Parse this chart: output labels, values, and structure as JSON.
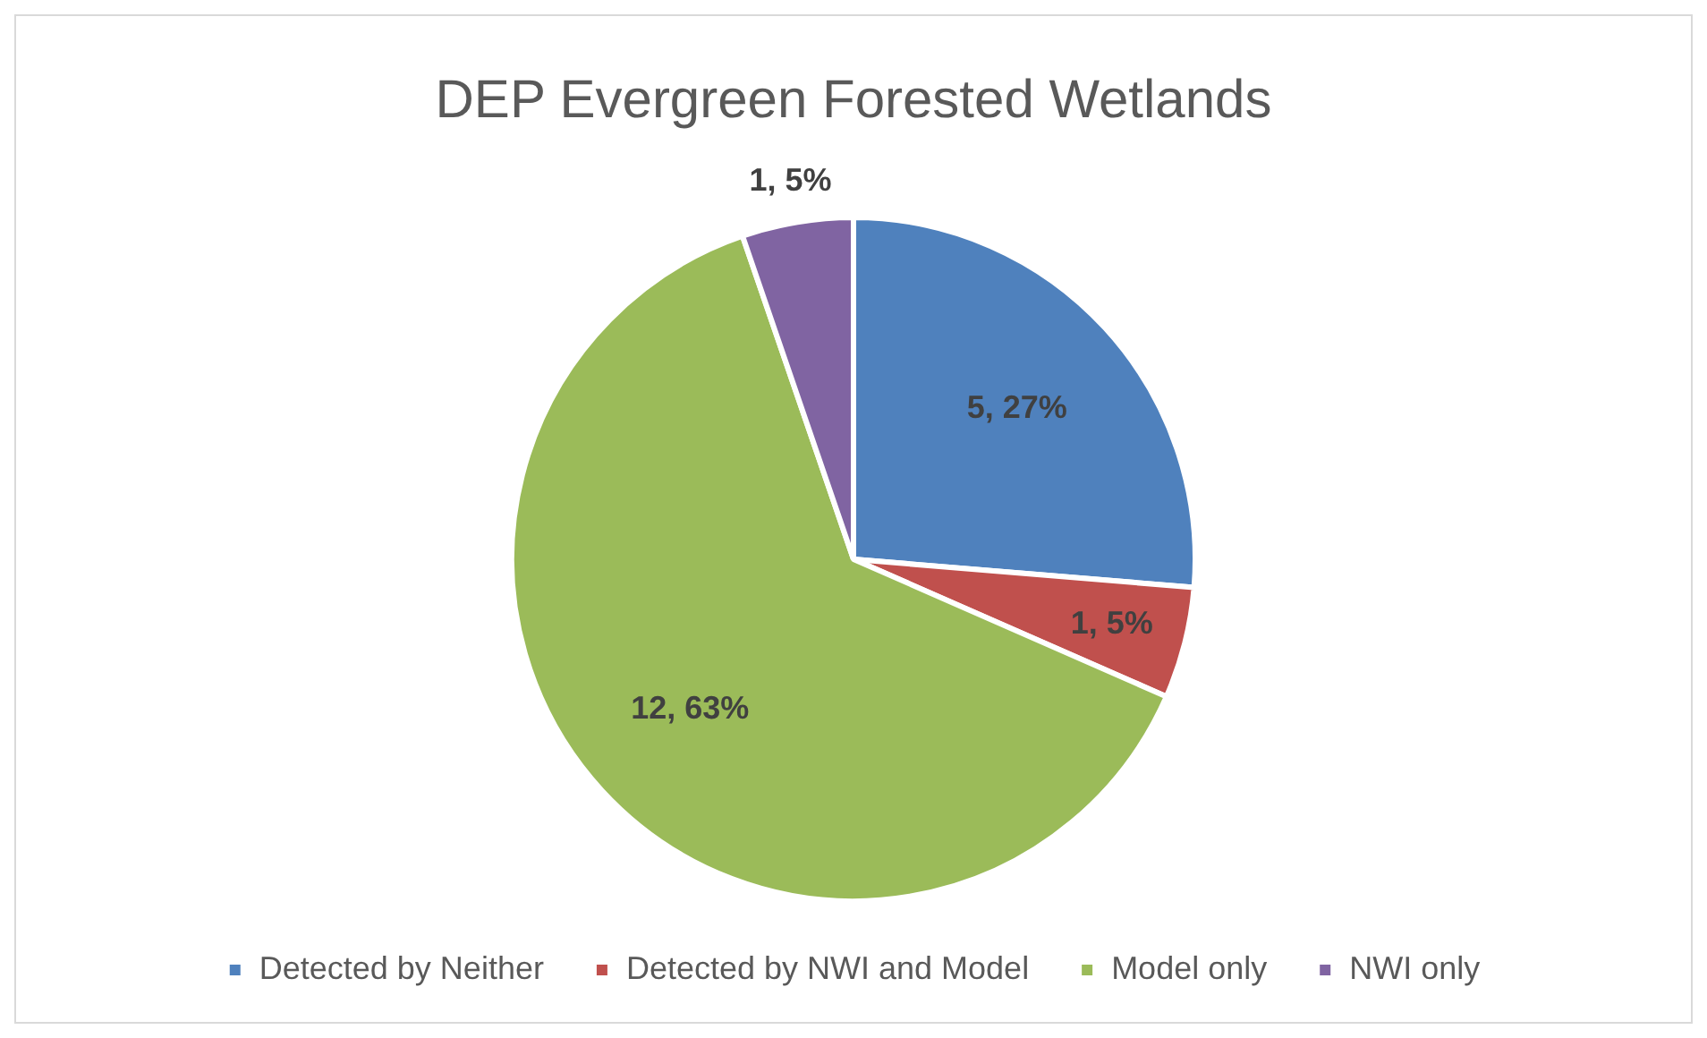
{
  "chart_data": {
    "type": "pie",
    "title": "DEP Evergreen Forested Wetlands",
    "categories": [
      "Detected by Neither",
      "Detected by NWI and Model",
      "Model only",
      "NWI only"
    ],
    "values": [
      5,
      1,
      12,
      1
    ],
    "colors": [
      "#4f81bd",
      "#c0504d",
      "#9bbb59",
      "#8064a2"
    ],
    "value_labels": [
      "5, 27%",
      "1, 5%",
      "12, 63%",
      "1, 5%"
    ],
    "legend": "bottom"
  }
}
